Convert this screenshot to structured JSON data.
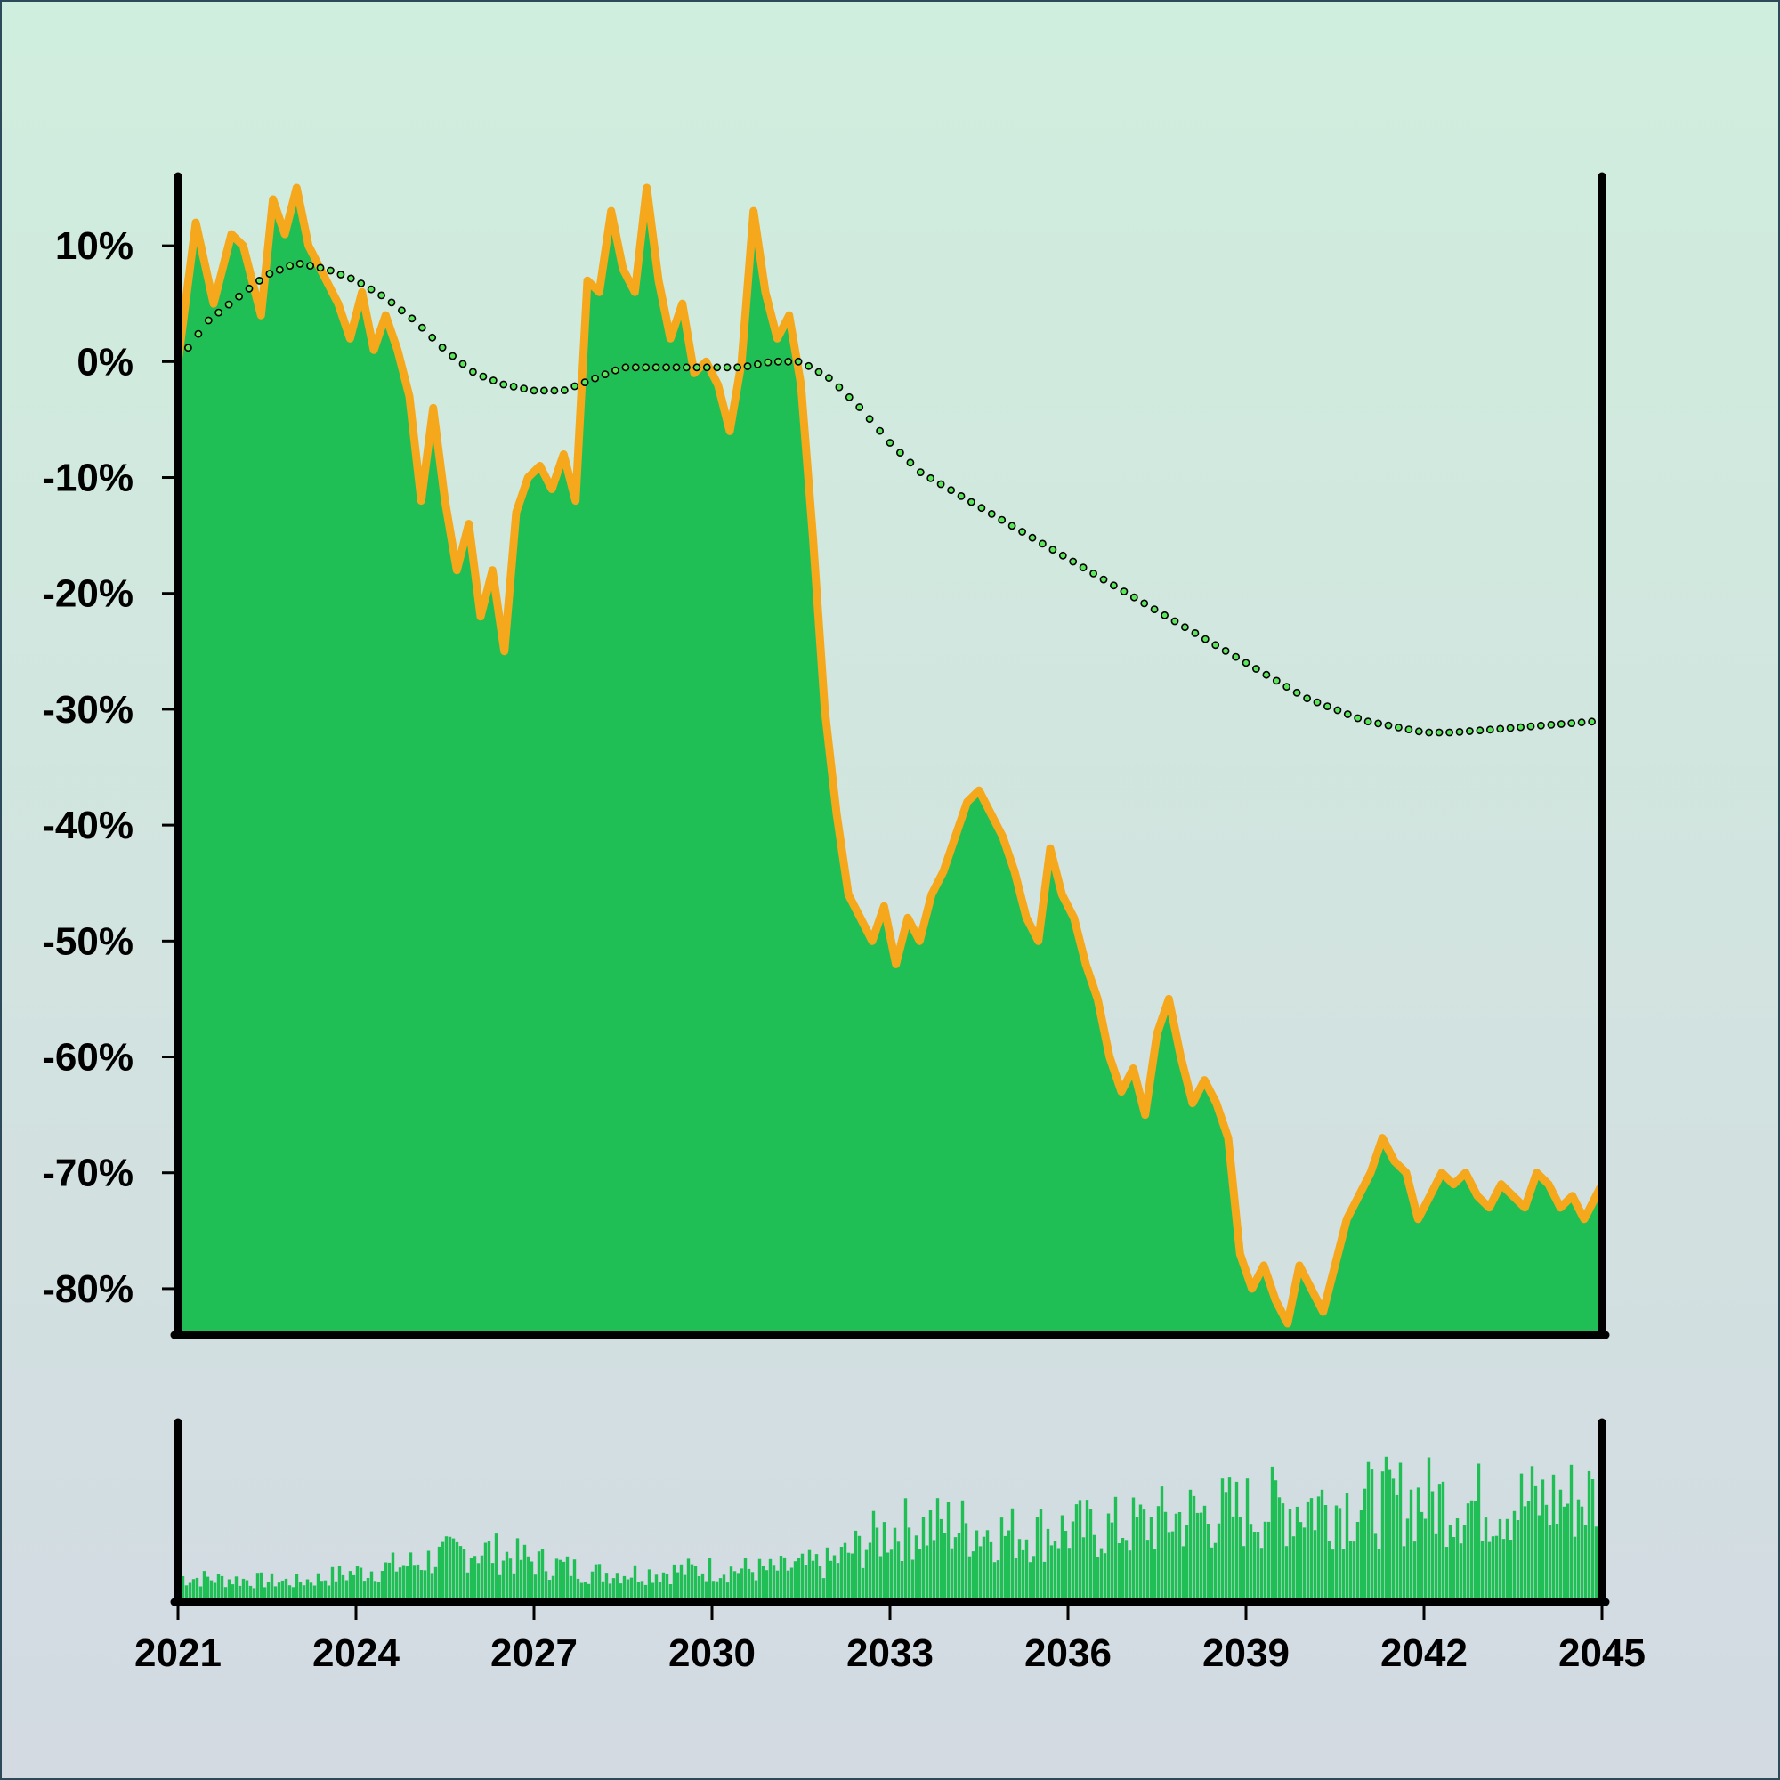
{
  "chart_data": [
    {
      "type": "area",
      "title": "",
      "xlabel": "",
      "ylabel": "",
      "xlim": [
        2021,
        2045
      ],
      "ylim": [
        -84,
        16
      ],
      "y_ticks": [
        "10%",
        "0%",
        "-10%",
        "-20%",
        "-30%",
        "-40%",
        "-50%",
        "-60%",
        "-70%",
        "-80%"
      ],
      "y_tick_values": [
        10,
        0,
        -10,
        -20,
        -30,
        -40,
        -50,
        -60,
        -70,
        -80
      ],
      "grid": false,
      "legend": "none",
      "colors": {
        "area": "#20bf55",
        "line": "#f5a81c",
        "trend_dot": "#5ce65c"
      },
      "series": [
        {
          "kind": "area",
          "x": [
            2021.0,
            2021.3,
            2021.6,
            2021.9,
            2022.1,
            2022.4,
            2022.6,
            2022.8,
            2023.0,
            2023.2,
            2023.4,
            2023.7,
            2023.9,
            2024.1,
            2024.3,
            2024.5,
            2024.7,
            2024.9,
            2025.1,
            2025.3,
            2025.5,
            2025.7,
            2025.9,
            2026.1,
            2026.3,
            2026.5,
            2026.7,
            2026.9,
            2027.1,
            2027.3,
            2027.5,
            2027.7,
            2027.9,
            2028.1,
            2028.3,
            2028.5,
            2028.7,
            2028.9,
            2029.1,
            2029.3,
            2029.5,
            2029.7,
            2029.9,
            2030.1,
            2030.3,
            2030.5,
            2030.7,
            2030.9,
            2031.1,
            2031.3,
            2031.5,
            2031.7,
            2031.9,
            2032.1,
            2032.3,
            2032.5,
            2032.7,
            2032.9,
            2033.1,
            2033.3,
            2033.5,
            2033.7,
            2033.9,
            2034.1,
            2034.3,
            2034.5,
            2034.7,
            2034.9,
            2035.1,
            2035.3,
            2035.5,
            2035.7,
            2035.9,
            2036.1,
            2036.3,
            2036.5,
            2036.7,
            2036.9,
            2037.1,
            2037.3,
            2037.5,
            2037.7,
            2037.9,
            2038.1,
            2038.3,
            2038.5,
            2038.7,
            2038.9,
            2039.1,
            2039.3,
            2039.5,
            2039.7,
            2039.9,
            2040.1,
            2040.3,
            2040.5,
            2040.7,
            2040.9,
            2041.1,
            2041.3,
            2041.5,
            2041.7,
            2041.9,
            2042.1,
            2042.3,
            2042.5,
            2042.7,
            2042.9,
            2043.1,
            2043.3,
            2043.5,
            2043.7,
            2043.9,
            2044.1,
            2044.3,
            2044.5,
            2044.7,
            2045.0
          ],
          "y": [
            0,
            12,
            5,
            11,
            10,
            4,
            14,
            11,
            15,
            10,
            8,
            5,
            2,
            6,
            1,
            4,
            1,
            -3,
            -12,
            -4,
            -12,
            -18,
            -14,
            -22,
            -18,
            -25,
            -13,
            -10,
            -9,
            -11,
            -8,
            -12,
            7,
            6,
            13,
            8,
            6,
            15,
            7,
            2,
            5,
            -1,
            0,
            -2,
            -6,
            0,
            13,
            6,
            2,
            4,
            -2,
            -15,
            -30,
            -39,
            -46,
            -48,
            -50,
            -47,
            -52,
            -48,
            -50,
            -46,
            -44,
            -41,
            -38,
            -37,
            -39,
            -41,
            -44,
            -48,
            -50,
            -42,
            -46,
            -48,
            -52,
            -55,
            -60,
            -63,
            -61,
            -65,
            -58,
            -55,
            -60,
            -64,
            -62,
            -64,
            -67,
            -77,
            -80,
            -78,
            -81,
            -83,
            -78,
            -80,
            -82,
            -78,
            -74,
            -72,
            -70,
            -67,
            -69,
            -70,
            -74,
            -72,
            -70,
            -71,
            -70,
            -72,
            -73,
            -71,
            -72,
            -73,
            -70,
            -71,
            -73,
            -72,
            -74,
            -71
          ]
        },
        {
          "kind": "dotted-trend",
          "x": [
            2021.0,
            2021.5,
            2022.0,
            2022.5,
            2023.0,
            2023.5,
            2024.0,
            2024.5,
            2025.0,
            2025.5,
            2026.0,
            2026.5,
            2027.0,
            2027.5,
            2028.0,
            2028.5,
            2029.0,
            2029.5,
            2030.0,
            2030.5,
            2031.0,
            2031.5,
            2032.0,
            2032.5,
            2033.0,
            2033.5,
            2034.0,
            2034.5,
            2035.0,
            2035.5,
            2036.0,
            2036.5,
            2037.0,
            2037.5,
            2038.0,
            2038.5,
            2039.0,
            2039.5,
            2040.0,
            2040.5,
            2041.0,
            2041.5,
            2042.0,
            2042.5,
            2043.0,
            2043.5,
            2044.0,
            2044.5,
            2045.0
          ],
          "y": [
            0,
            3.5,
            5.5,
            7.5,
            8.5,
            8,
            7,
            5.5,
            3.5,
            1,
            -1,
            -2,
            -2.5,
            -2.5,
            -1.5,
            -0.5,
            -0.5,
            -0.5,
            -0.5,
            -0.5,
            0,
            0,
            -1.5,
            -4,
            -7,
            -9.5,
            -11,
            -12.5,
            -14,
            -15.5,
            -17,
            -18.5,
            -20,
            -21.5,
            -23,
            -24.5,
            -26,
            -27.5,
            -29,
            -30,
            -31,
            -31.5,
            -32,
            -32,
            -31.8,
            -31.6,
            -31.4,
            -31.2,
            -31
          ]
        }
      ]
    },
    {
      "type": "bar",
      "title": "",
      "xlabel": "",
      "ylabel": "",
      "x_ticks": [
        "2021",
        "2024",
        "2027",
        "2030",
        "2033",
        "2036",
        "2039",
        "2042",
        "2045"
      ],
      "x_tick_values": [
        2021,
        2024,
        2027,
        2030,
        2033,
        2036,
        2039,
        2042,
        2045
      ],
      "xlim": [
        2021,
        2045
      ],
      "ylim": [
        0,
        1
      ],
      "colors": {
        "bar": "#20bf55"
      },
      "envelope_x": [
        2021,
        2022,
        2023,
        2024,
        2025,
        2026,
        2027,
        2028,
        2029,
        2030,
        2031,
        2032,
        2033,
        2034,
        2035,
        2036,
        2037,
        2038,
        2039,
        2040,
        2041,
        2042,
        2043,
        2044,
        2045
      ],
      "envelope_y": [
        0.18,
        0.16,
        0.14,
        0.22,
        0.3,
        0.42,
        0.32,
        0.22,
        0.22,
        0.25,
        0.24,
        0.3,
        0.58,
        0.62,
        0.55,
        0.58,
        0.6,
        0.7,
        0.74,
        0.8,
        0.8,
        0.84,
        0.8,
        0.82,
        0.86
      ]
    }
  ]
}
